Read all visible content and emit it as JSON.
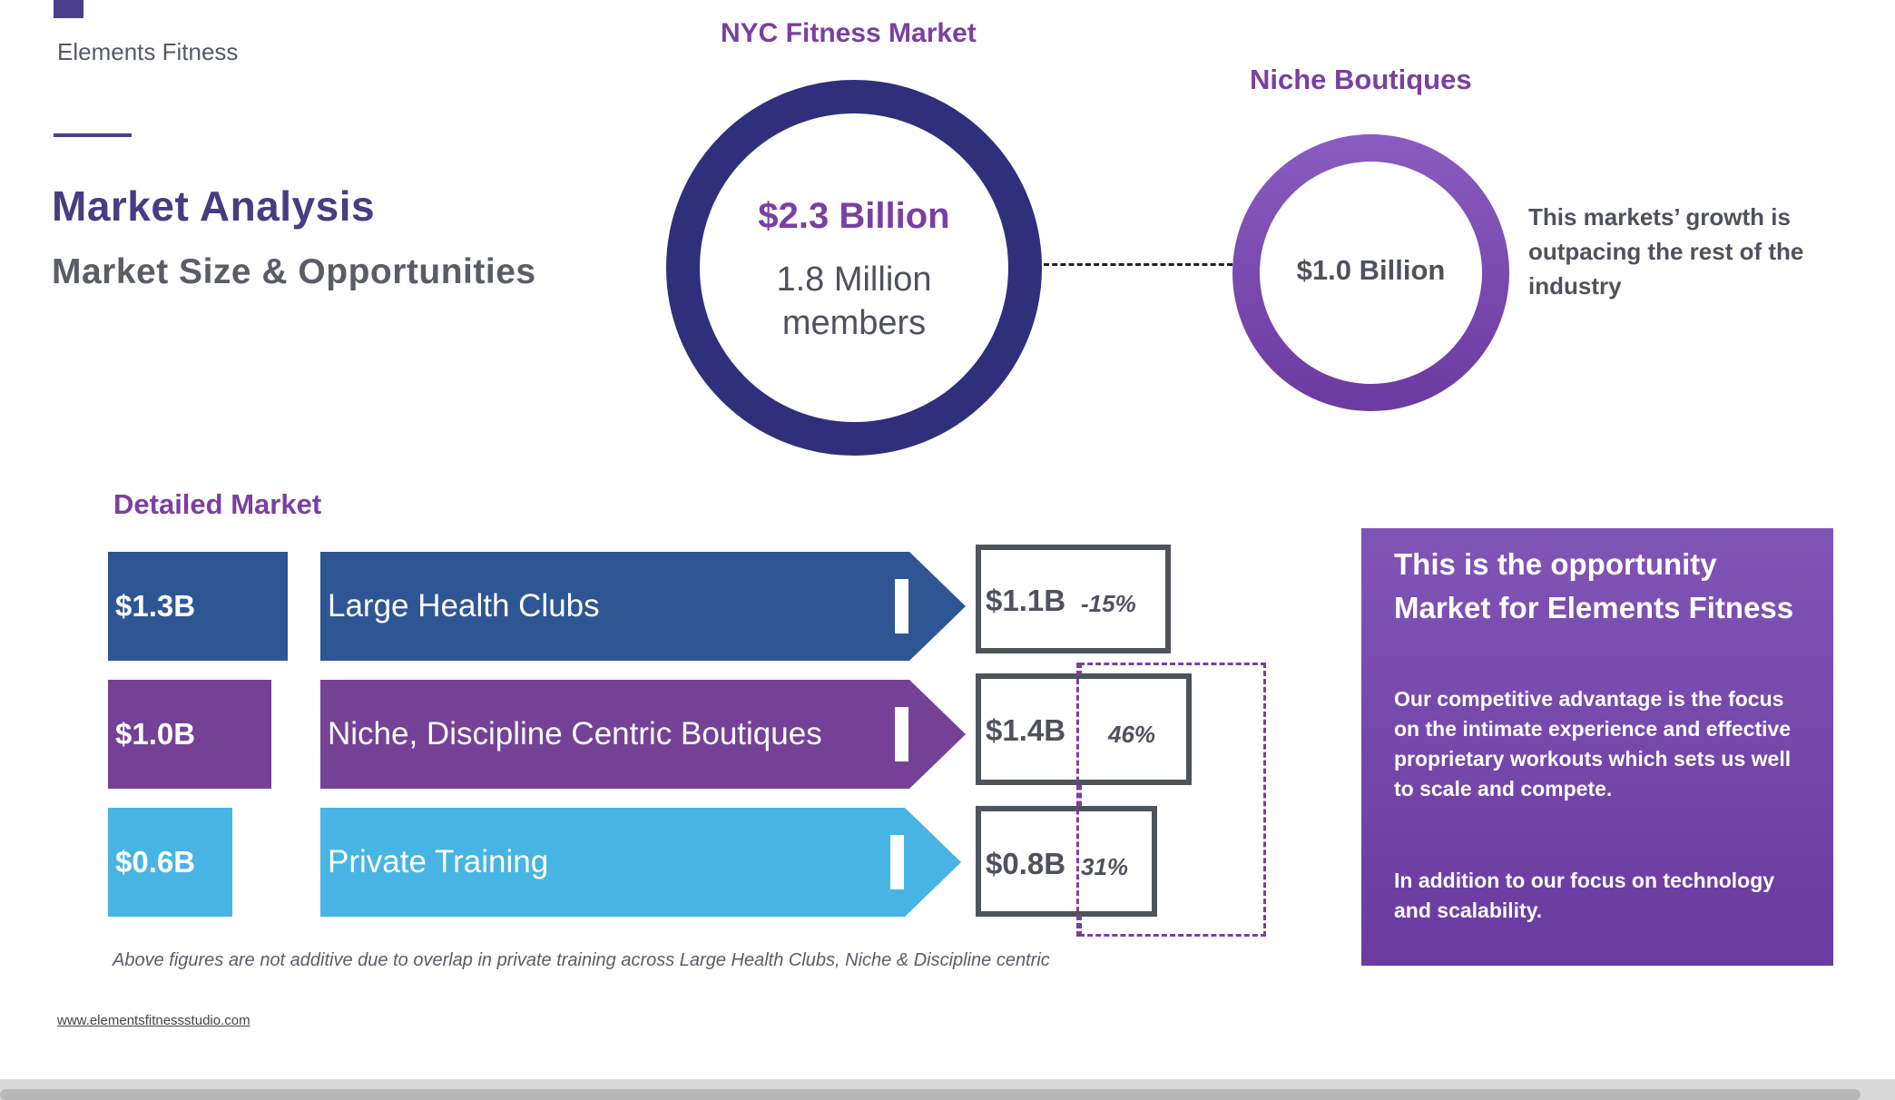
{
  "brand": {
    "name": "Elements Fitness",
    "website": "www.elementsfitnessstudio.com"
  },
  "header": {
    "title": "Market Analysis",
    "subtitle": "Market Size & Opportunities"
  },
  "nyc_market": {
    "label": "NYC Fitness Market",
    "value": "$2.3 Billion",
    "members_line1": "1.8 Million",
    "members_line2": "members"
  },
  "niche": {
    "label": "Niche Boutiques",
    "value": "$1.0 Billion",
    "note": "This markets’ growth is outpacing the rest of the industry"
  },
  "detailed": {
    "label": "Detailed Market",
    "rows": [
      {
        "size": "$1.3B",
        "segment": "Large Health Clubs",
        "projected": "$1.1B",
        "change": "-15%",
        "color": "#2f5694"
      },
      {
        "size": "$1.0B",
        "segment": "Niche, Discipline Centric Boutiques",
        "projected": "$1.4B",
        "change": "46%",
        "color": "#754197"
      },
      {
        "size": "$0.6B",
        "segment": "Private Training",
        "projected": "$0.8B",
        "change": "31%",
        "color": "#48b4e3"
      }
    ],
    "footnote": "Above figures are not additive due to overlap in private training across Large Health Clubs, Niche & Discipline centric"
  },
  "opportunity": {
    "title": "This is the opportunity Market for Elements Fitness",
    "text1": "Our competitive advantage is the focus on the intimate experience and effective proprietary workouts which sets us well to scale and compete.",
    "text2": "In addition to our focus on technology and scalability."
  },
  "colors": {
    "navy": "#2f2f7c",
    "purple": "#7a3fa2",
    "blue": "#2f5694",
    "sky": "#48b4e3",
    "gray": "#4f525c"
  }
}
